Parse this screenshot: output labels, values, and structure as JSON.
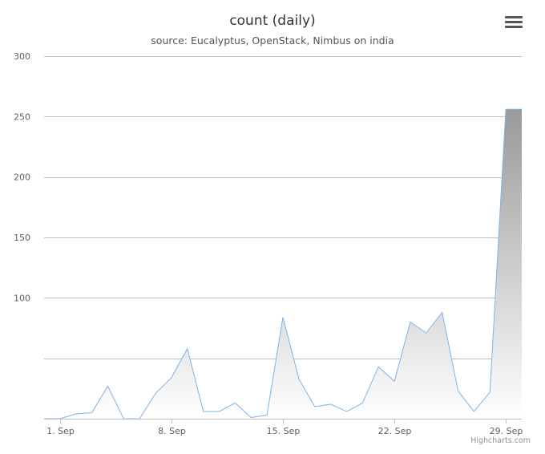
{
  "header": {
    "title": "count (daily)",
    "subtitle": "source: Eucalyptus, OpenStack, Nimbus on india"
  },
  "menu": {
    "icon": "hamburger-menu-icon"
  },
  "credits": {
    "text": "Highcharts.com"
  },
  "colors": {
    "line": "#7cb5ec",
    "grid": "#c0c0c0",
    "fill_top": "#999999",
    "fill_bottom": "#ffffff"
  },
  "chart_data": {
    "type": "area",
    "title": "count (daily)",
    "subtitle": "source: Eucalyptus, OpenStack, Nimbus on india",
    "x": [
      "2014-08-31",
      "2014-09-01",
      "2014-09-02",
      "2014-09-03",
      "2014-09-04",
      "2014-09-05",
      "2014-09-06",
      "2014-09-07",
      "2014-09-08",
      "2014-09-09",
      "2014-09-10",
      "2014-09-11",
      "2014-09-12",
      "2014-09-13",
      "2014-09-14",
      "2014-09-15",
      "2014-09-16",
      "2014-09-17",
      "2014-09-18",
      "2014-09-19",
      "2014-09-20",
      "2014-09-21",
      "2014-09-22",
      "2014-09-23",
      "2014-09-24",
      "2014-09-25",
      "2014-09-26",
      "2014-09-27",
      "2014-09-28",
      "2014-09-29",
      "2014-09-30"
    ],
    "x_tick_labels": [
      "1. Sep",
      "8. Sep",
      "15. Sep",
      "22. Sep",
      "29. Sep"
    ],
    "x_tick_dates": [
      "2014-09-01",
      "2014-09-08",
      "2014-09-15",
      "2014-09-22",
      "2014-09-29"
    ],
    "series": [
      {
        "values": [
          0,
          0,
          4,
          5,
          27,
          0,
          0,
          21,
          34,
          58,
          6,
          6,
          13,
          1,
          3,
          84,
          33,
          10,
          12,
          6,
          13,
          43,
          31,
          80,
          71,
          88,
          23,
          6,
          22,
          256,
          256
        ]
      }
    ],
    "y_ticks": [
      100,
      150,
      200,
      250,
      300
    ],
    "ylim": [
      0,
      300
    ],
    "grid": true,
    "legend": "none"
  }
}
